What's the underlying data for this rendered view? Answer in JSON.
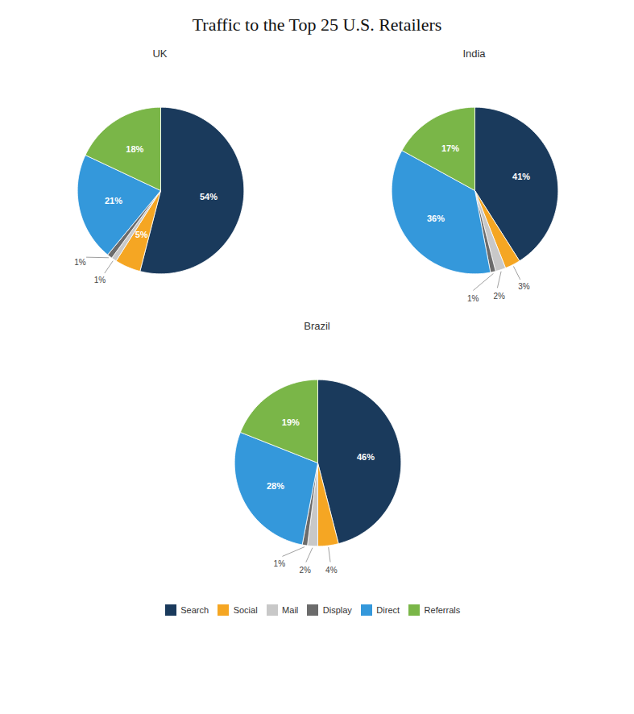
{
  "title": "Traffic to the Top 25 U.S. Retailers",
  "legend": "bottom",
  "chart_data": [
    {
      "type": "pie",
      "title": "UK",
      "categories": [
        "Search",
        "Social",
        "Mail",
        "Display",
        "Direct",
        "Referrals"
      ],
      "values": [
        54,
        5,
        1,
        1,
        21,
        18
      ],
      "value_labels": [
        "54%",
        "5%",
        "1%",
        "1%",
        "21%",
        "18%"
      ],
      "colors": [
        "#1a3a5c",
        "#f5a623",
        "#c8c8c8",
        "#6b6b6b",
        "#3498db",
        "#7ab648"
      ],
      "data_labels": true
    },
    {
      "type": "pie",
      "title": "India",
      "categories": [
        "Search",
        "Social",
        "Mail",
        "Display",
        "Direct",
        "Referrals"
      ],
      "values": [
        41,
        3,
        2,
        1,
        36,
        17
      ],
      "value_labels": [
        "41%",
        "3%",
        "2%",
        "1%",
        "36%",
        "17%"
      ],
      "colors": [
        "#1a3a5c",
        "#f5a623",
        "#c8c8c8",
        "#6b6b6b",
        "#3498db",
        "#7ab648"
      ],
      "data_labels": true
    },
    {
      "type": "pie",
      "title": "Brazil",
      "categories": [
        "Search",
        "Social",
        "Mail",
        "Display",
        "Direct",
        "Referrals"
      ],
      "values": [
        46,
        4,
        2,
        1,
        28,
        19
      ],
      "value_labels": [
        "46%",
        "4%",
        "2%",
        "1%",
        "28%",
        "19%"
      ],
      "colors": [
        "#1a3a5c",
        "#f5a623",
        "#c8c8c8",
        "#6b6b6b",
        "#3498db",
        "#7ab648"
      ],
      "data_labels": true
    }
  ]
}
